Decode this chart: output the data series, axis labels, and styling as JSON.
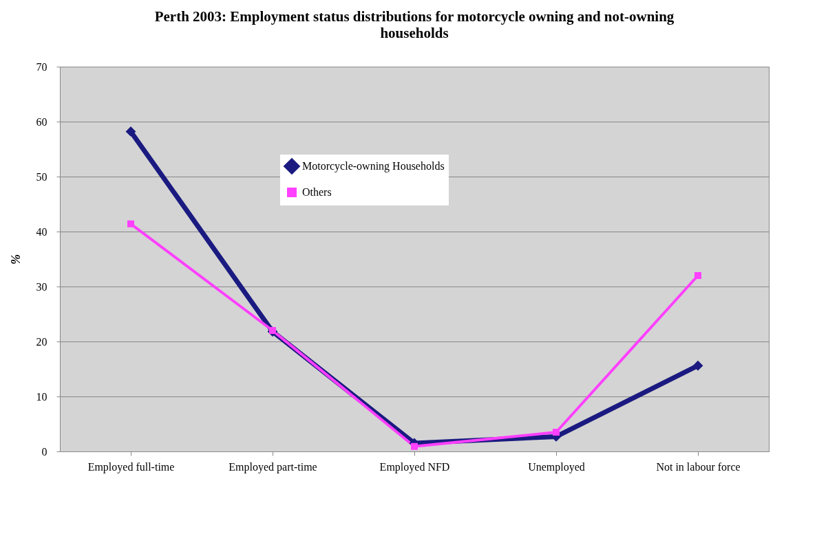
{
  "chart_data": {
    "type": "line",
    "title": "Perth 2003: Employment status distributions for motorcycle owning and not-owning households",
    "ylabel": "%",
    "categories": [
      "Employed full-time",
      "Employed part-time",
      "Employed NFD",
      "Unemployed",
      "Not in labour force"
    ],
    "series": [
      {
        "name": "Motorcycle-owning Households",
        "color": "#1a1a80",
        "marker": "diamond",
        "values": [
          58.2,
          21.8,
          1.5,
          2.7,
          15.6
        ]
      },
      {
        "name": "Others",
        "color": "#ff40ff",
        "marker": "square",
        "values": [
          41.4,
          22.0,
          0.9,
          3.5,
          32.0
        ]
      }
    ],
    "ylim": [
      0,
      70
    ],
    "yticks": [
      0,
      10,
      20,
      30,
      40,
      50,
      60,
      70
    ],
    "grid": "y",
    "legend": "top"
  }
}
